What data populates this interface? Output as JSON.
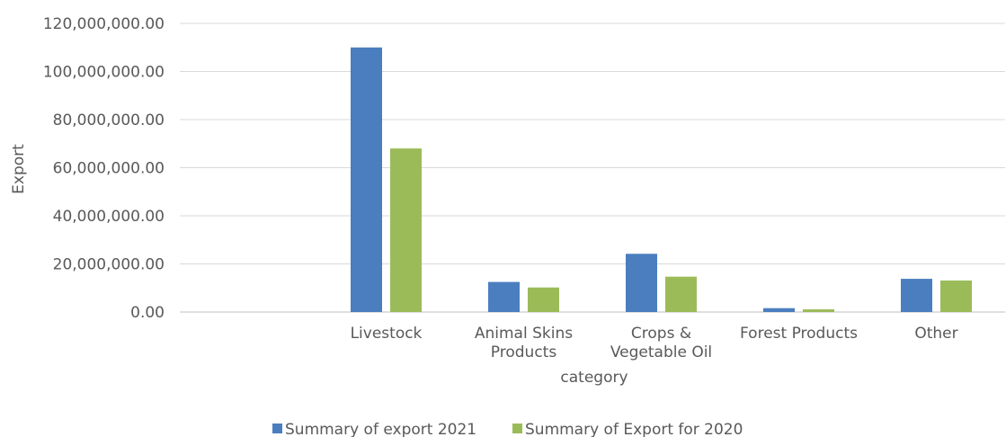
{
  "chart_data": {
    "type": "bar",
    "title": "",
    "xlabel": "category",
    "ylabel": "Export",
    "ylim": [
      0,
      120000000
    ],
    "ytick_values": [
      0,
      20000000,
      40000000,
      60000000,
      80000000,
      100000000,
      120000000
    ],
    "ytick_labels": [
      "0.00",
      "20,000,000.00",
      "40,000,000.00",
      "60,000,000.00",
      "80,000,000.00",
      "100,000,000.00",
      "120,000,000.00"
    ],
    "categories": [
      "",
      "Livestock",
      "Animal Skins Products",
      "Crops & Vegetable Oil",
      "Forest Products",
      "Other"
    ],
    "category_label_lines": [
      [],
      [
        "Livestock"
      ],
      [
        "Animal Skins",
        "Products"
      ],
      [
        "Crops &",
        "Vegetable Oil"
      ],
      [
        "Forest Products"
      ],
      [
        "Other"
      ]
    ],
    "series": [
      {
        "name": "Summary of export 2021",
        "color": "#4a7ebf",
        "values": [
          null,
          110000000,
          12500000,
          24200000,
          1600000,
          13800000
        ]
      },
      {
        "name": "Summary of Export for 2020",
        "color": "#9bbb59",
        "values": [
          null,
          68000000,
          10200000,
          14700000,
          1100000,
          13100000
        ]
      }
    ],
    "grid": true,
    "legend_position": "bottom"
  }
}
